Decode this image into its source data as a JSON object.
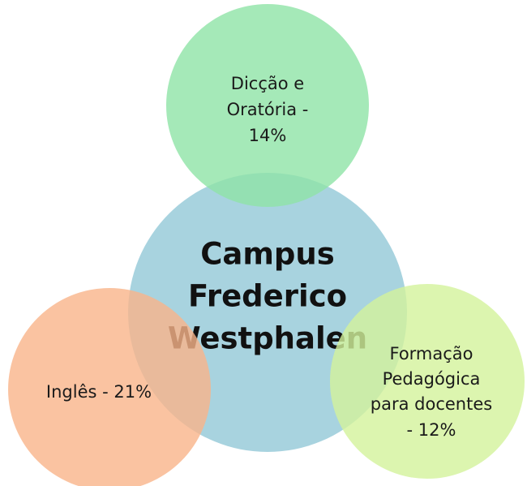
{
  "center": {
    "lines": [
      "Campus",
      "Frederico",
      "Westphalen"
    ]
  },
  "nodes": [
    {
      "lines": [
        "Dicção e",
        "Oratória -",
        "14%"
      ]
    },
    {
      "lines": [
        "Inglês - 21%"
      ]
    },
    {
      "lines": [
        "Formação",
        "Pedagógica",
        "para docentes",
        "- 12%"
      ]
    }
  ]
}
